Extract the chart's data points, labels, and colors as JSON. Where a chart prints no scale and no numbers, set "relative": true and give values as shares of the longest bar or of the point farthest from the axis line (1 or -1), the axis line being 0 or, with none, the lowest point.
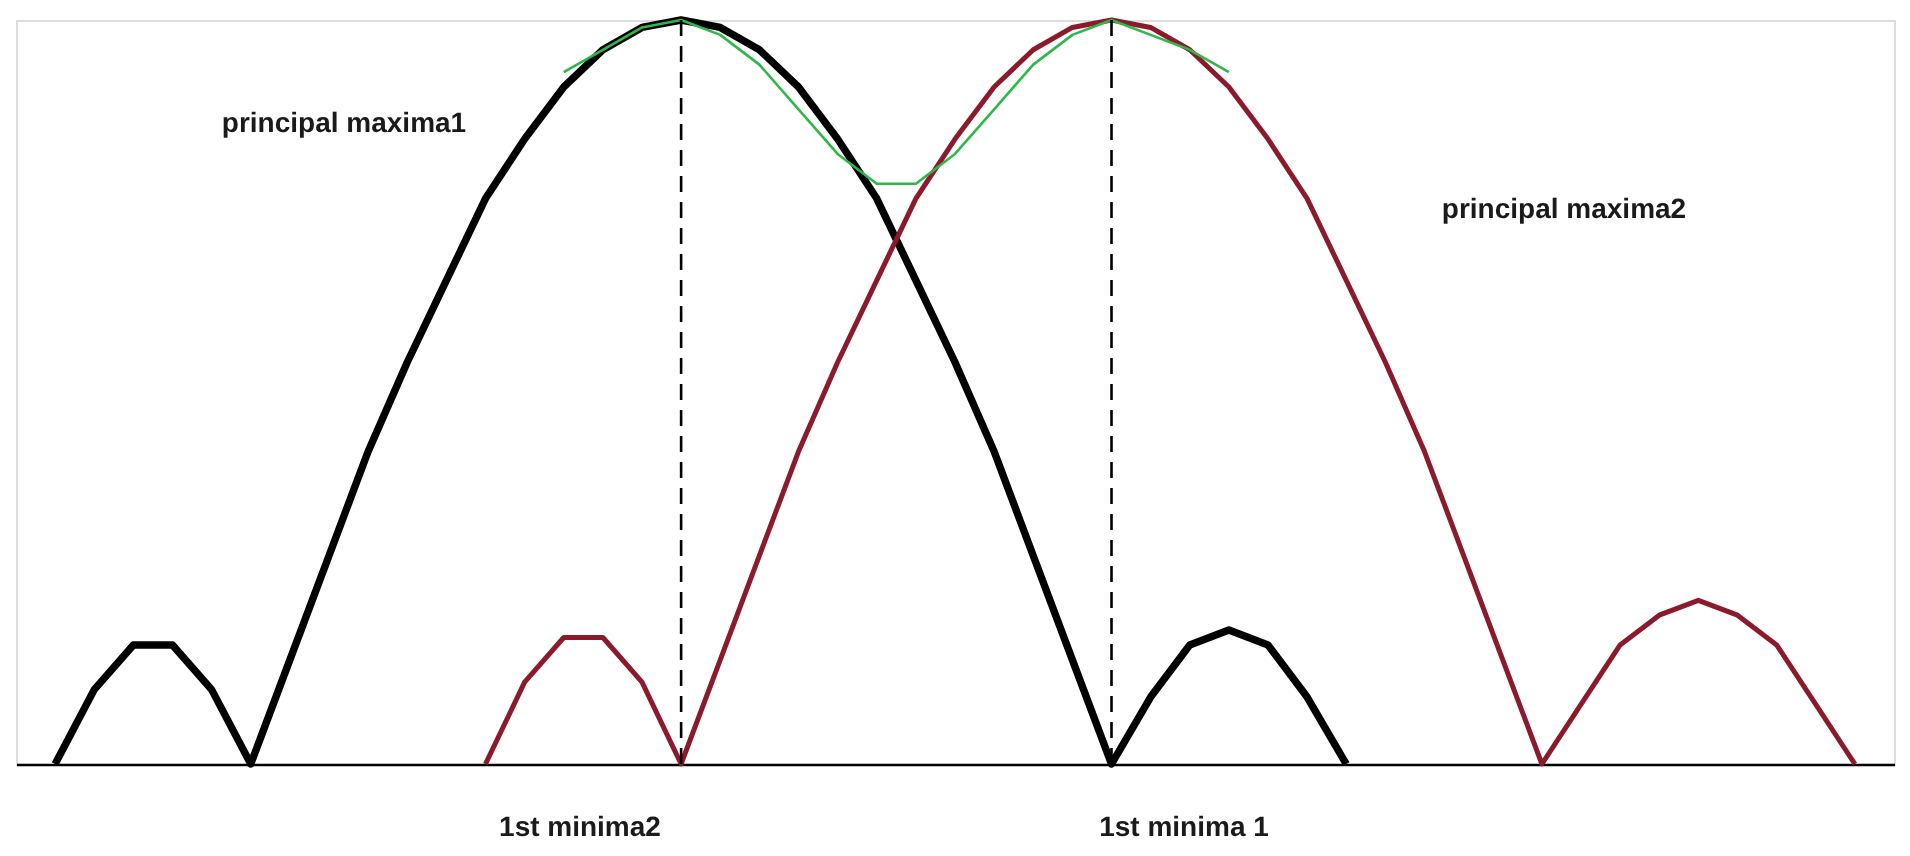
{
  "chart_data": {
    "type": "line",
    "relative": true,
    "categories": [
      null,
      null,
      null,
      null,
      null,
      null,
      null,
      null,
      null,
      null,
      null,
      null,
      null,
      null,
      null,
      null,
      null,
      null,
      null,
      null,
      null,
      null,
      null,
      null,
      null,
      null,
      null,
      null,
      null,
      null,
      null,
      null,
      null,
      null,
      null,
      null,
      null,
      null,
      null,
      null,
      null,
      null,
      null,
      null,
      null,
      null,
      null,
      null,
      null
    ],
    "series": [
      {
        "color": "#000000",
        "values": [
          null,
          0,
          0.1,
          0.16,
          0.16,
          0.1,
          0,
          0.14,
          0.28,
          0.42,
          0.54,
          0.65,
          0.76,
          0.84,
          0.91,
          0.96,
          0.99,
          1,
          0.99,
          0.96,
          0.91,
          0.84,
          0.76,
          0.65,
          0.54,
          0.42,
          0.28,
          0.14,
          0,
          0.09,
          0.16,
          0.18,
          0.16,
          0.09,
          0,
          null,
          null,
          null,
          null,
          null,
          null,
          null,
          null,
          null,
          null,
          null,
          null,
          null,
          null
        ]
      },
      {
        "color": "#8b1a2b",
        "values": [
          null,
          null,
          null,
          null,
          null,
          null,
          null,
          null,
          null,
          null,
          null,
          null,
          0,
          0.11,
          0.17,
          0.17,
          0.11,
          0,
          0.14,
          0.28,
          0.42,
          0.54,
          0.65,
          0.76,
          0.84,
          0.91,
          0.96,
          0.99,
          1,
          0.99,
          0.96,
          0.91,
          0.84,
          0.76,
          0.65,
          0.54,
          0.42,
          0.28,
          0.14,
          0,
          0.08,
          0.16,
          0.2,
          0.22,
          0.2,
          0.16,
          0.08,
          0,
          null
        ]
      },
      {
        "color": "#2fb84a",
        "values": [
          null,
          null,
          null,
          null,
          null,
          null,
          null,
          null,
          null,
          null,
          null,
          null,
          null,
          null,
          0.93,
          0.96,
          0.99,
          1,
          0.98,
          0.94,
          0.88,
          0.82,
          0.78,
          0.78,
          0.82,
          0.88,
          0.94,
          0.98,
          1,
          0.98,
          0.96,
          0.93,
          null,
          null,
          null,
          null,
          null,
          null,
          null,
          null,
          null,
          null,
          null,
          null,
          null,
          null,
          null,
          null,
          null
        ]
      }
    ],
    "annotations": [
      "principal maxima1",
      "principal maxima2",
      "1st minima2",
      "1st minima 1"
    ]
  }
}
